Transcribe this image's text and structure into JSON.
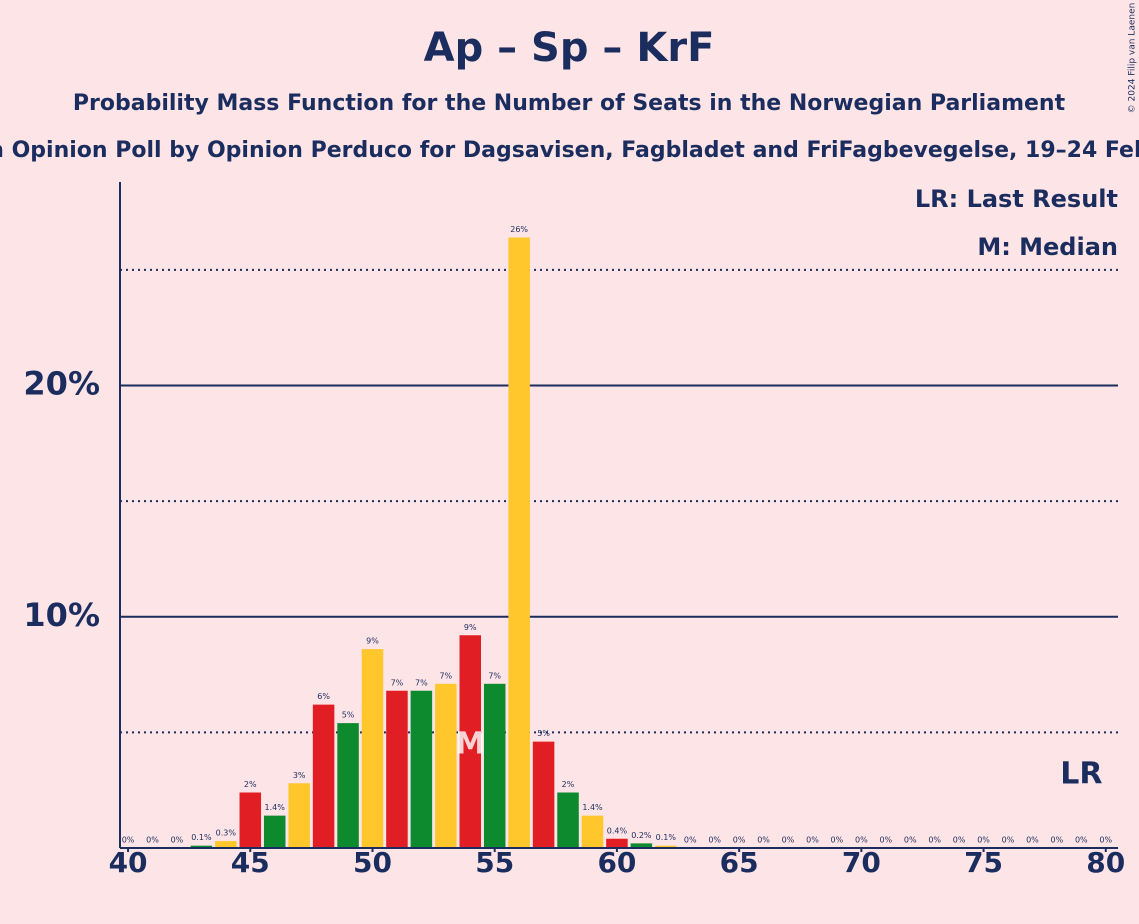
{
  "chart_data": {
    "type": "bar",
    "title": "Ap – Sp – KrF",
    "subtitle": "Probability Mass Function for the Number of Seats in the Norwegian Parliament",
    "subtitle2": "n Opinion Poll by Opinion Perduco for Dagsavisen, Fagbladet and FriFagbevegelse, 19–24 Feb",
    "copyright": "© 2024 Filip van Laenen",
    "x": [
      40,
      41,
      42,
      43,
      44,
      45,
      46,
      47,
      48,
      49,
      50,
      51,
      52,
      53,
      54,
      55,
      56,
      57,
      58,
      59,
      60,
      61,
      62,
      63,
      64,
      65,
      66,
      67,
      68,
      69,
      70,
      71,
      72,
      73,
      74,
      75,
      76,
      77,
      78,
      79,
      80
    ],
    "values": [
      0,
      0,
      0,
      0.1,
      0.3,
      2.4,
      1.4,
      2.8,
      6.2,
      5.4,
      8.6,
      6.8,
      6.8,
      7.1,
      9.2,
      7.1,
      26.4,
      4.6,
      2.4,
      1.4,
      0.4,
      0.2,
      0.1,
      0,
      0,
      0,
      0,
      0,
      0,
      0,
      0,
      0,
      0,
      0,
      0,
      0,
      0,
      0,
      0,
      0,
      0
    ],
    "value_labels": [
      "0%",
      "0%",
      "0%",
      "0.1%",
      "0.3%",
      "2%",
      "1.4%",
      "3%",
      "6%",
      "5%",
      "9%",
      "7%",
      "7%",
      "7%",
      "9%",
      "7%",
      "26%",
      "5%",
      "2%",
      "1.4%",
      "0.4%",
      "0.2%",
      "0.1%",
      "0%",
      "0%",
      "0%",
      "0%",
      "0%",
      "0%",
      "0%",
      "0%",
      "0%",
      "0%",
      "0%",
      "0%",
      "0%",
      "0%",
      "0%",
      "0%",
      "0%",
      "0%"
    ],
    "colors": [
      "#0d8a2e",
      "#ffc72c",
      "#e01e24"
    ],
    "xlim": [
      39.67,
      80.5
    ],
    "xticks": [
      40,
      45,
      50,
      55,
      60,
      65,
      70,
      75,
      80
    ],
    "ylim": [
      0,
      28.8
    ],
    "yticks": [
      {
        "value": 10,
        "label": "10%"
      },
      {
        "value": 20,
        "label": "20%"
      }
    ],
    "minor_grid": [
      5,
      15,
      25
    ],
    "grid": true,
    "median": {
      "x": 54,
      "label": "M"
    },
    "last_result": {
      "x": 79,
      "label": "LR"
    },
    "legend": [
      "LR: Last Result",
      "M: Median"
    ]
  }
}
